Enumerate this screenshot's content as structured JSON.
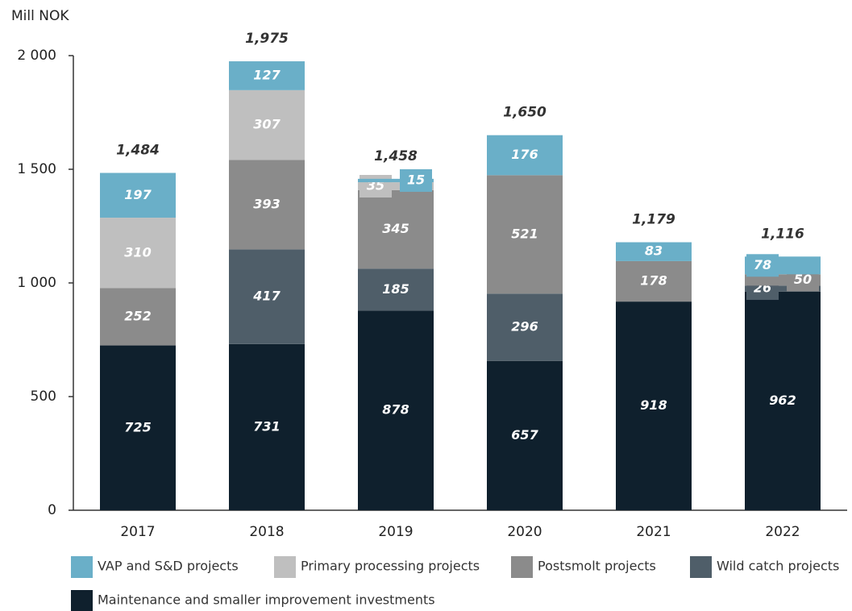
{
  "chart_data": {
    "type": "stacked_bar",
    "y_label": "Mill NOK",
    "categories": [
      "2017",
      "2018",
      "2019",
      "2020",
      "2021",
      "2022"
    ],
    "series": [
      {
        "name": "Maintenance and smaller improvement investments",
        "color": "#0f202d",
        "values": [
          725,
          731,
          878,
          657,
          918,
          962
        ]
      },
      {
        "name": "Wild catch projects",
        "color": "#4f5e69",
        "values": [
          null,
          417,
          185,
          296,
          null,
          26
        ]
      },
      {
        "name": "Postsmolt projects",
        "color": "#8b8b8b",
        "values": [
          252,
          393,
          345,
          521,
          178,
          50
        ]
      },
      {
        "name": "Primary processing projects",
        "color": "#bfbfbf",
        "values": [
          310,
          307,
          35,
          null,
          null,
          null
        ]
      },
      {
        "name": "VAP and S&D projects",
        "color": "#6aafc8",
        "values": [
          197,
          127,
          15,
          176,
          83,
          78
        ]
      }
    ],
    "totals": {
      "values": [
        1484,
        1975,
        1458,
        1650,
        1179,
        1116
      ],
      "value_labels": [
        "1,484",
        "1,975",
        "1,458",
        "1,650",
        "1,179",
        "1,116"
      ]
    },
    "ylim": [
      0,
      2000
    ],
    "yticks": [
      0,
      500,
      {
        "value": 1000,
        "label": "1 000"
      },
      {
        "value": 1500,
        "label": "1 500"
      },
      {
        "value": 2000,
        "label": "2 000"
      }
    ],
    "legend_order": [
      4,
      3,
      2,
      1,
      0
    ]
  }
}
